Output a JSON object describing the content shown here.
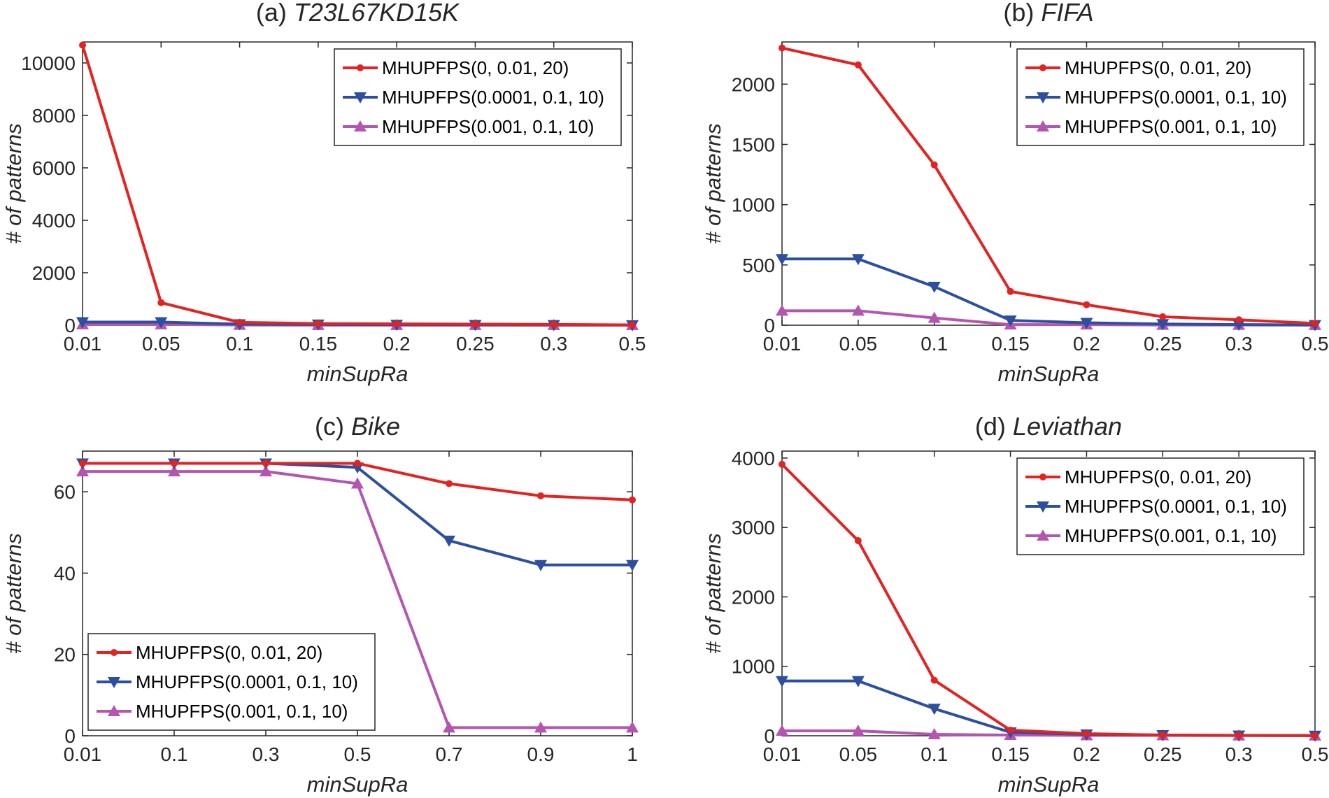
{
  "chart_data": [
    {
      "type": "line",
      "title_prefix": "(a) ",
      "title_dataset": "T23L67KD15K",
      "xlabel": "minSupRa",
      "ylabel": "# of patterns",
      "categories": [
        "0.01",
        "0.05",
        "0.1",
        "0.15",
        "0.2",
        "0.25",
        "0.3",
        "0.5"
      ],
      "ylim": [
        0,
        10800
      ],
      "yticks": [
        0,
        2000,
        4000,
        6000,
        8000,
        10000
      ],
      "legend_position": "top-right",
      "series": [
        {
          "name": "MHUPFPS(0, 0.01, 20)",
          "color": "#e32222",
          "marker": "dot",
          "values": [
            10680,
            860,
            110,
            60,
            50,
            40,
            30,
            10
          ]
        },
        {
          "name": "MHUPFPS(0.0001, 0.1, 10)",
          "color": "#2c4fa0",
          "marker": "triangle-down",
          "values": [
            120,
            120,
            40,
            30,
            20,
            15,
            10,
            5
          ]
        },
        {
          "name": "MHUPFPS(0.001, 0.1, 10)",
          "color": "#b455b0",
          "marker": "triangle-up",
          "values": [
            30,
            30,
            10,
            5,
            5,
            5,
            5,
            2
          ]
        }
      ]
    },
    {
      "type": "line",
      "title_prefix": "(b) ",
      "title_dataset": "FIFA",
      "xlabel": "minSupRa",
      "ylabel": "# of patterns",
      "categories": [
        "0.01",
        "0.05",
        "0.1",
        "0.15",
        "0.2",
        "0.25",
        "0.3",
        "0.5"
      ],
      "ylim": [
        0,
        2350
      ],
      "yticks": [
        0,
        500,
        1000,
        1500,
        2000
      ],
      "legend_position": "top-right",
      "series": [
        {
          "name": "MHUPFPS(0, 0.01, 20)",
          "color": "#e32222",
          "marker": "dot",
          "values": [
            2300,
            2160,
            1330,
            280,
            170,
            70,
            45,
            15
          ]
        },
        {
          "name": "MHUPFPS(0.0001, 0.1, 10)",
          "color": "#2c4fa0",
          "marker": "triangle-down",
          "values": [
            550,
            550,
            320,
            40,
            20,
            10,
            5,
            2
          ]
        },
        {
          "name": "MHUPFPS(0.001, 0.1, 10)",
          "color": "#b455b0",
          "marker": "triangle-up",
          "values": [
            120,
            120,
            60,
            5,
            5,
            2,
            2,
            1
          ]
        }
      ]
    },
    {
      "type": "line",
      "title_prefix": "(c) ",
      "title_dataset": "Bike",
      "xlabel": "minSupRa",
      "ylabel": "# of patterns",
      "categories": [
        "0.01",
        "0.1",
        "0.3",
        "0.5",
        "0.7",
        "0.9",
        "1"
      ],
      "ylim": [
        0,
        70
      ],
      "yticks": [
        0,
        20,
        40,
        60
      ],
      "legend_position": "bottom-left",
      "series": [
        {
          "name": "MHUPFPS(0, 0.01, 20)",
          "color": "#e32222",
          "marker": "dot",
          "values": [
            67,
            67,
            67,
            67,
            62,
            59,
            58
          ]
        },
        {
          "name": "MHUPFPS(0.0001, 0.1, 10)",
          "color": "#2c4fa0",
          "marker": "triangle-down",
          "values": [
            67,
            67,
            67,
            66,
            48,
            42,
            42
          ]
        },
        {
          "name": "MHUPFPS(0.001, 0.1, 10)",
          "color": "#b455b0",
          "marker": "triangle-up",
          "values": [
            65,
            65,
            65,
            62,
            2,
            2,
            2
          ]
        }
      ]
    },
    {
      "type": "line",
      "title_prefix": "(d) ",
      "title_dataset": "Leviathan",
      "xlabel": "minSupRa",
      "ylabel": "# of patterns",
      "categories": [
        "0.01",
        "0.05",
        "0.1",
        "0.15",
        "0.2",
        "0.25",
        "0.3",
        "0.5"
      ],
      "ylim": [
        0,
        4100
      ],
      "yticks": [
        0,
        1000,
        2000,
        3000,
        4000
      ],
      "legend_position": "top-right",
      "series": [
        {
          "name": "MHUPFPS(0, 0.01, 20)",
          "color": "#e32222",
          "marker": "dot",
          "values": [
            3910,
            2810,
            800,
            80,
            30,
            10,
            5,
            2
          ]
        },
        {
          "name": "MHUPFPS(0.0001, 0.1, 10)",
          "color": "#2c4fa0",
          "marker": "triangle-down",
          "values": [
            790,
            790,
            390,
            50,
            20,
            10,
            5,
            2
          ]
        },
        {
          "name": "MHUPFPS(0.001, 0.1, 10)",
          "color": "#b455b0",
          "marker": "triangle-up",
          "values": [
            70,
            70,
            20,
            10,
            5,
            5,
            2,
            1
          ]
        }
      ]
    }
  ]
}
